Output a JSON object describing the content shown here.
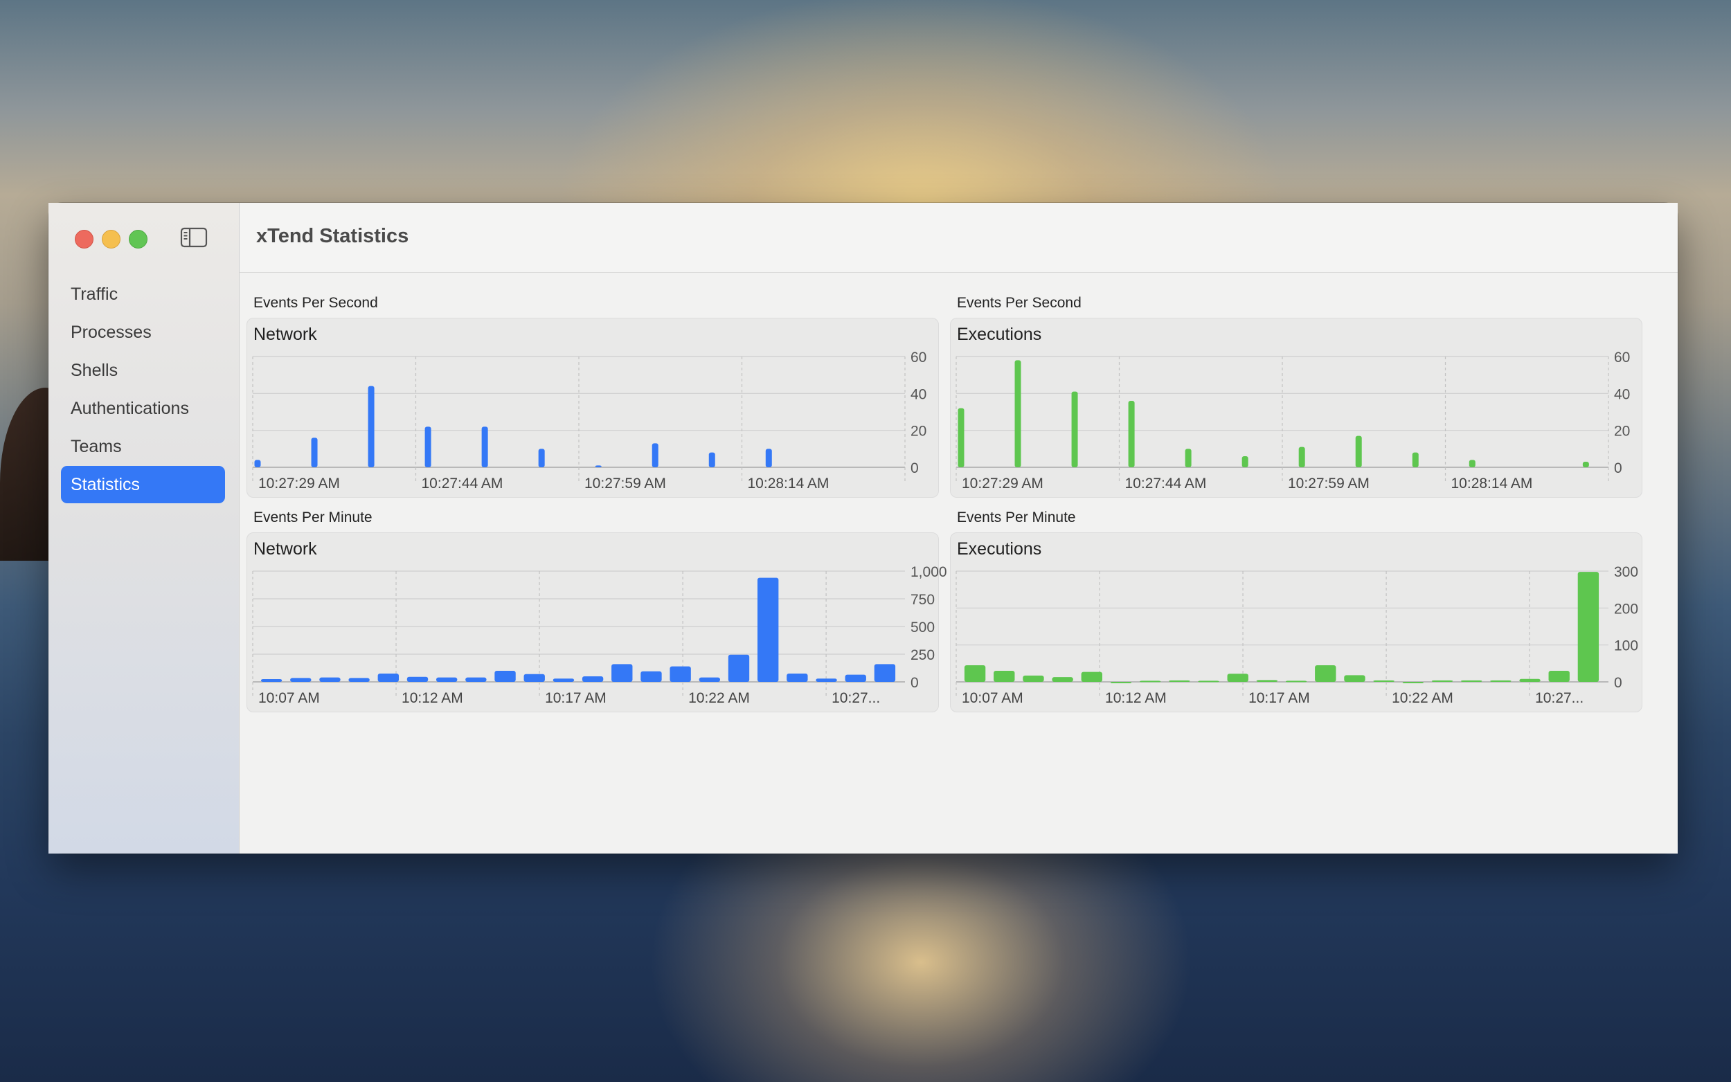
{
  "window": {
    "title": "xTend Statistics"
  },
  "sidebar": {
    "items": [
      {
        "label": "Traffic",
        "selected": false
      },
      {
        "label": "Processes",
        "selected": false
      },
      {
        "label": "Shells",
        "selected": false
      },
      {
        "label": "Authentications",
        "selected": false
      },
      {
        "label": "Teams",
        "selected": false
      },
      {
        "label": "Statistics",
        "selected": true
      }
    ]
  },
  "colors": {
    "accent": "#3478f6",
    "network": "#3478f6",
    "executions": "#5ec64f"
  },
  "charts": [
    {
      "section_label": "Events Per Second",
      "chart_data": {
        "type": "bar",
        "title": "Network",
        "color": "#3478f6",
        "ylim": [
          0,
          60
        ],
        "yticks": [
          "0",
          "20",
          "40",
          "60"
        ],
        "xticks": [
          "10:27:29 AM",
          "10:27:44 AM",
          "10:27:59 AM",
          "10:28:14 AM"
        ],
        "x_range_seconds": 60,
        "bars": [
          {
            "t": 0,
            "value": 4
          },
          {
            "t": 5,
            "value": 16
          },
          {
            "t": 10,
            "value": 44
          },
          {
            "t": 15,
            "value": 22
          },
          {
            "t": 20,
            "value": 22
          },
          {
            "t": 25,
            "value": 10
          },
          {
            "t": 30,
            "value": 1
          },
          {
            "t": 35,
            "value": 13
          },
          {
            "t": 40,
            "value": 8
          },
          {
            "t": 45,
            "value": 10
          }
        ]
      }
    },
    {
      "section_label": "Events Per Second",
      "chart_data": {
        "type": "bar",
        "title": "Executions",
        "color": "#5ec64f",
        "ylim": [
          0,
          60
        ],
        "yticks": [
          "0",
          "20",
          "40",
          "60"
        ],
        "xticks": [
          "10:27:29 AM",
          "10:27:44 AM",
          "10:27:59 AM",
          "10:28:14 AM"
        ],
        "x_range_seconds": 60,
        "bars": [
          {
            "t": 0,
            "value": 32
          },
          {
            "t": 5,
            "value": 58
          },
          {
            "t": 10,
            "value": 41
          },
          {
            "t": 15,
            "value": 36
          },
          {
            "t": 20,
            "value": 10
          },
          {
            "t": 25,
            "value": 6
          },
          {
            "t": 30,
            "value": 11
          },
          {
            "t": 35,
            "value": 17
          },
          {
            "t": 40,
            "value": 8
          },
          {
            "t": 45,
            "value": 4
          },
          {
            "t": 55,
            "value": 3
          }
        ]
      }
    },
    {
      "section_label": "Events Per Minute",
      "chart_data": {
        "type": "bar",
        "title": "Network",
        "color": "#3478f6",
        "ylim": [
          0,
          1000
        ],
        "yticks": [
          "0",
          "250",
          "500",
          "750",
          "1,000"
        ],
        "xticks": [
          "10:07 AM",
          "10:12 AM",
          "10:17 AM",
          "10:22 AM",
          "10:27..."
        ],
        "values": [
          25,
          35,
          40,
          35,
          75,
          45,
          40,
          40,
          100,
          70,
          30,
          50,
          160,
          95,
          140,
          40,
          245,
          940,
          75,
          30,
          65,
          160
        ]
      }
    },
    {
      "section_label": "Events Per Minute",
      "chart_data": {
        "type": "bar",
        "title": "Executions",
        "color": "#5ec64f",
        "ylim": [
          0,
          300
        ],
        "yticks": [
          "0",
          "100",
          "200",
          "300"
        ],
        "xticks": [
          "10:07 AM",
          "10:12 AM",
          "10:17 AM",
          "10:22 AM",
          "10:27..."
        ],
        "values": [
          45,
          30,
          17,
          13,
          27,
          0,
          3,
          4,
          3,
          22,
          5,
          3,
          45,
          18,
          4,
          0,
          4,
          4,
          4,
          8,
          30,
          298
        ]
      }
    }
  ]
}
